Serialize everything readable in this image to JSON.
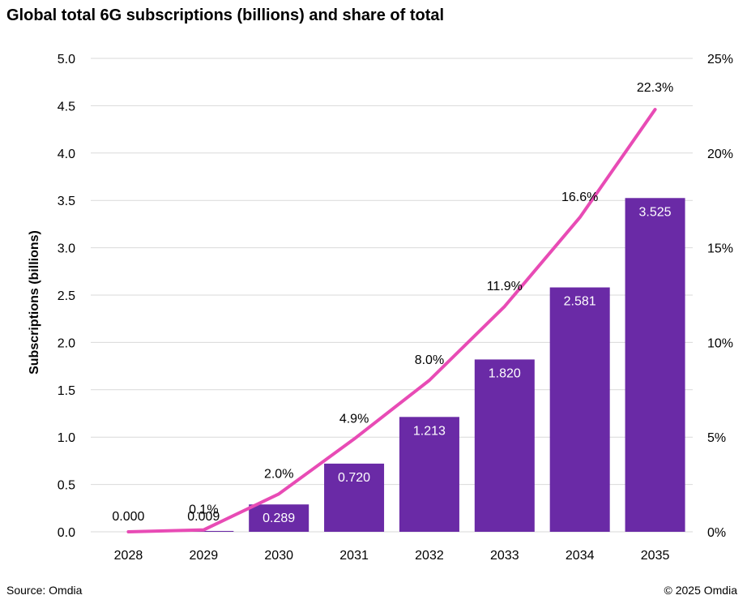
{
  "footer": {
    "source": "Source: Omdia",
    "copyright": "© 2025 Omdia"
  },
  "colors": {
    "bar": "#6a2aa6",
    "line": "#e84bb5",
    "grid": "#d9d9d9",
    "bar_label": "#ffffff"
  },
  "chart_data": {
    "type": "bar",
    "title": "Global total 6G subscriptions (billions) and share of total",
    "categories": [
      "2028",
      "2029",
      "2030",
      "2031",
      "2032",
      "2033",
      "2034",
      "2035"
    ],
    "series": [
      {
        "name": "Subscriptions (billions)",
        "type": "bar",
        "axis": "left",
        "values": [
          0.0,
          0.009,
          0.289,
          0.72,
          1.213,
          1.82,
          2.581,
          3.525
        ],
        "labels": [
          "0.000",
          "0.009",
          "0.289",
          "0.720",
          "1.213",
          "1.820",
          "2.581",
          "3.525"
        ]
      },
      {
        "name": "Share of total",
        "type": "line",
        "axis": "right",
        "values": [
          0.0,
          0.1,
          2.0,
          4.9,
          8.0,
          11.9,
          16.6,
          22.3
        ],
        "labels": [
          "",
          "0.1%",
          "2.0%",
          "4.9%",
          "8.0%",
          "11.9%",
          "16.6%",
          "22.3%"
        ]
      }
    ],
    "ylabel": "Subscriptions (billions)",
    "ylim": [
      0,
      5
    ],
    "yticks": [
      "0.0",
      "0.5",
      "1.0",
      "1.5",
      "2.0",
      "2.5",
      "3.0",
      "3.5",
      "4.0",
      "4.5",
      "5.0"
    ],
    "y2lim": [
      0,
      25
    ],
    "y2ticks": [
      "0%",
      "5%",
      "10%",
      "15%",
      "20%",
      "25%"
    ],
    "grid": true
  }
}
